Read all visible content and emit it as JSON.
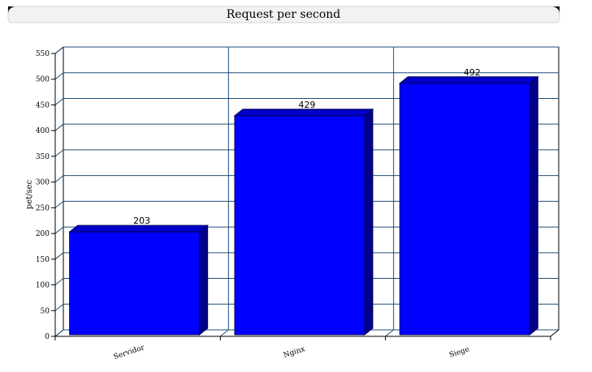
{
  "chart_data": {
    "type": "bar",
    "title": "Request per second",
    "xlabel": "",
    "ylabel": "pet/sec",
    "categories": [
      "Servidor",
      "Nginx",
      "Siege"
    ],
    "series": [
      {
        "values": [
          203,
          429,
          492
        ]
      }
    ],
    "ylim": [
      0,
      550
    ],
    "yticks": [
      0,
      50,
      100,
      150,
      200,
      250,
      300,
      350,
      400,
      450,
      500,
      550
    ],
    "grid": true,
    "colors": {
      "bar_front": "#0000ff",
      "bar_top": "#0000c8",
      "bar_side": "#000088",
      "grid": "#1f4f7a",
      "axis": "#000000",
      "title_bg": "#ffffff",
      "title_border": "#000000"
    }
  }
}
